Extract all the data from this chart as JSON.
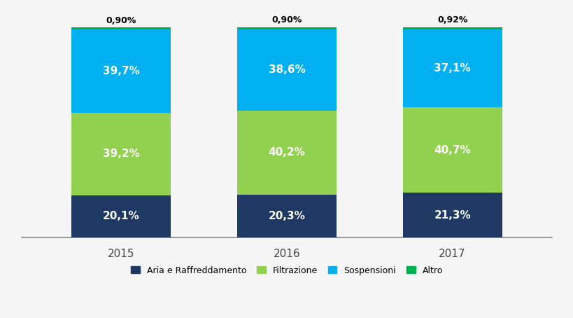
{
  "years": [
    "2015",
    "2016",
    "2017"
  ],
  "series": {
    "Aria e Raffreddamento": [
      20.1,
      20.3,
      21.3
    ],
    "Filtrazione": [
      39.2,
      40.2,
      40.7
    ],
    "Sospensioni": [
      39.7,
      38.6,
      37.1
    ],
    "Altro": [
      0.9,
      0.9,
      0.92
    ]
  },
  "colors": {
    "Aria e Raffreddamento": "#1f3864",
    "Filtrazione": "#92d050",
    "Sospensioni": "#00b0f0",
    "Altro": "#00b050"
  },
  "label_colors": {
    "Aria e Raffreddamento": "white",
    "Filtrazione": "white",
    "Sospensioni": "white",
    "Altro": "black"
  },
  "background_color": "#f5f5f5",
  "bar_width": 0.6,
  "ylim": [
    0,
    108
  ],
  "legend_order": [
    "Aria e Raffreddamento",
    "Filtrazione",
    "Sospensioni",
    "Altro"
  ],
  "label_fontsize": 11,
  "altro_fontsize": 9,
  "tick_fontsize": 11
}
